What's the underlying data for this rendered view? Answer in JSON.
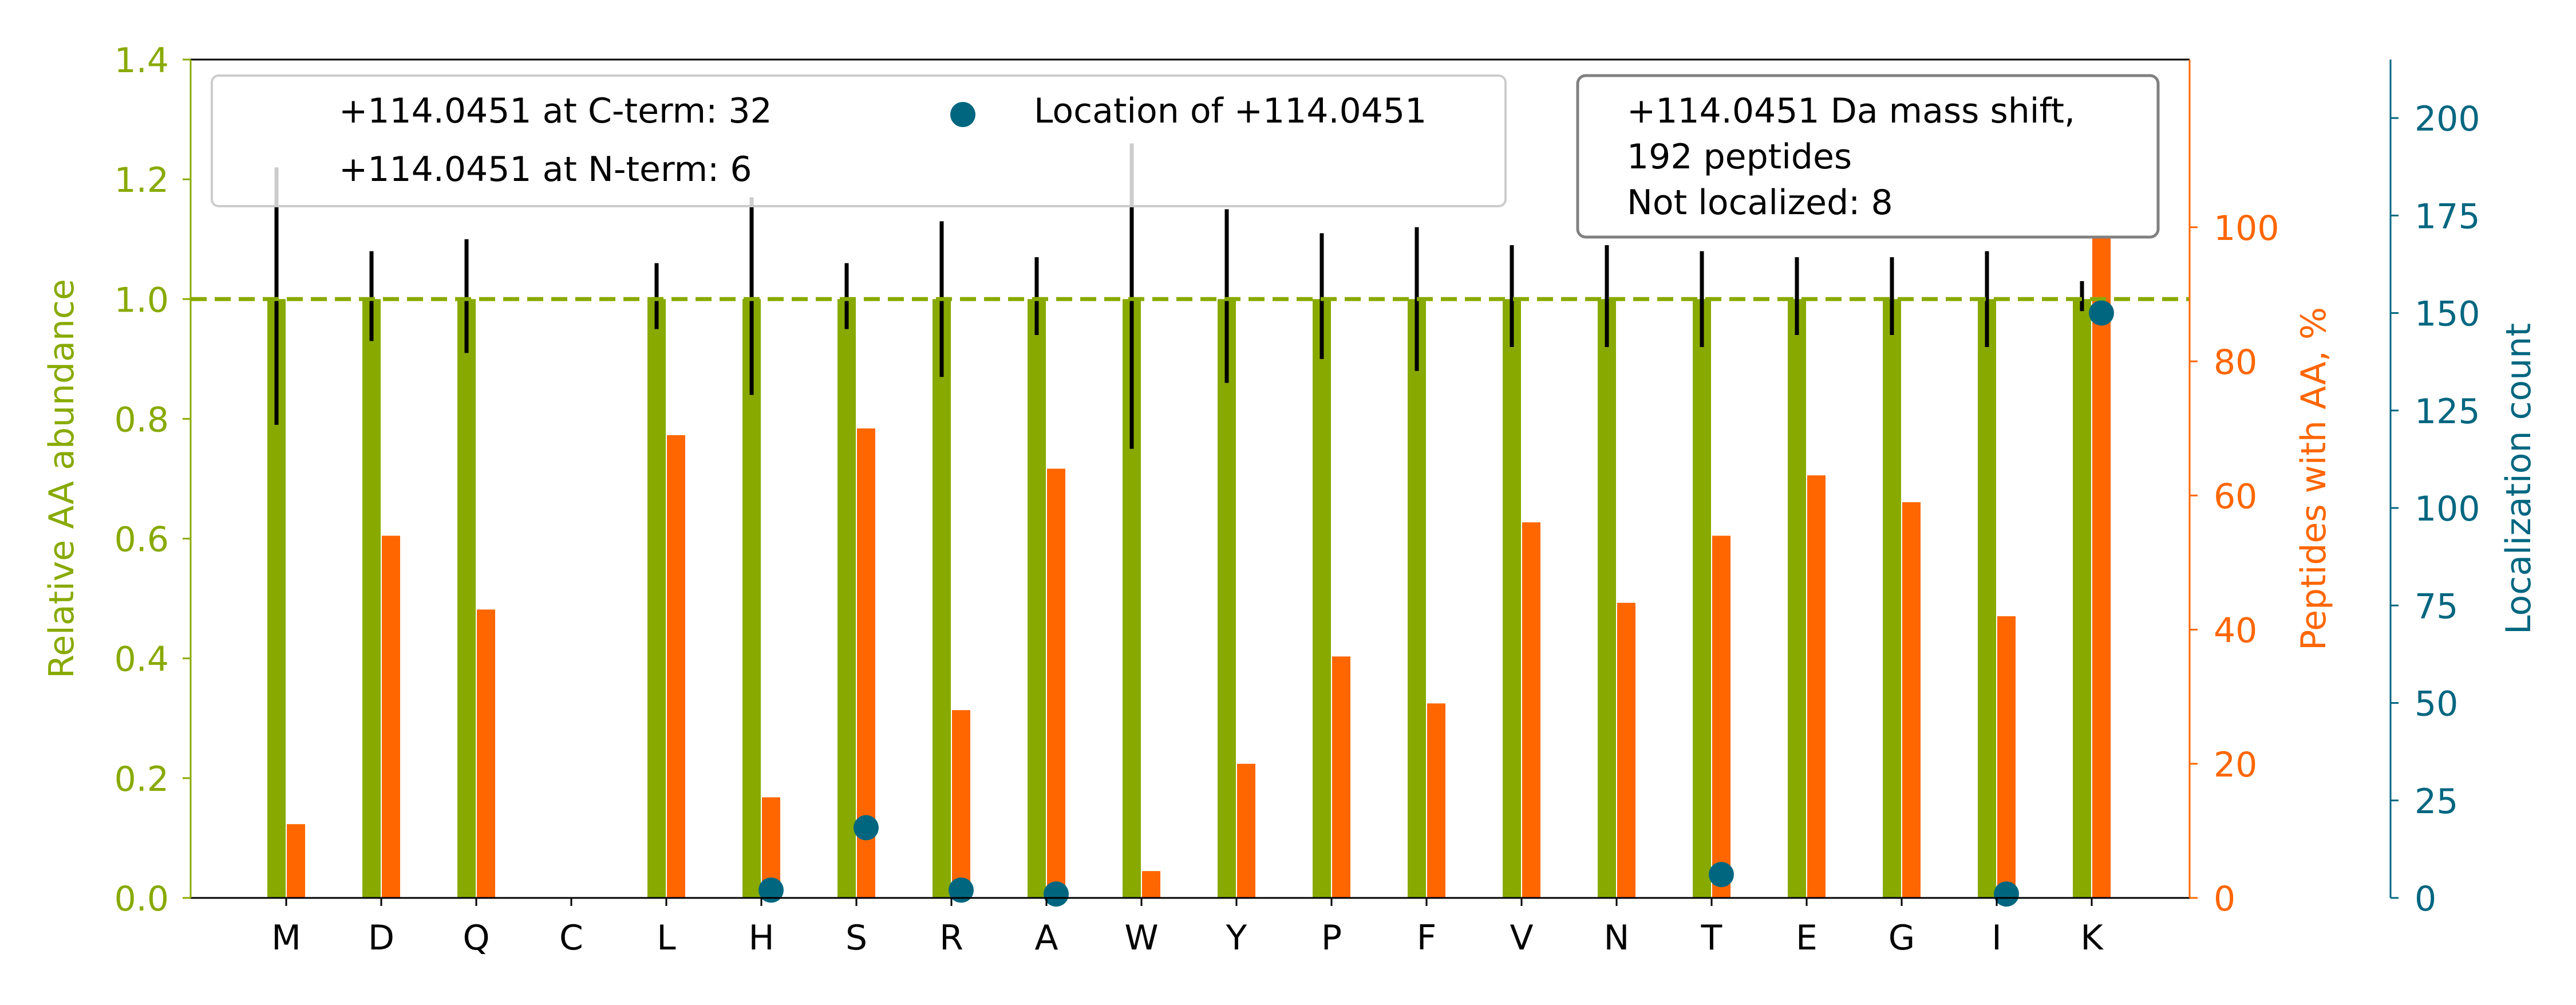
{
  "colors": {
    "abundance": "#88aa00",
    "peptides": "#ff6600",
    "localization": "#006680",
    "errorbar": "#000000",
    "axis": "#000000",
    "legend_border": "#cccccc",
    "infobox_border": "#808080"
  },
  "legend": {
    "cterm": "+114.0451 at C-term: 32",
    "nterm": "+114.0451 at N-term: 6",
    "location": "Location of +114.0451",
    "location_marker": "circle"
  },
  "info_box": {
    "line1": "+114.0451 Da mass shift,",
    "line2": "192 peptides",
    "line3": "Not localized: 8"
  },
  "chart_data": {
    "type": "bar",
    "categories": [
      "M",
      "D",
      "Q",
      "C",
      "L",
      "H",
      "S",
      "R",
      "A",
      "W",
      "Y",
      "P",
      "F",
      "V",
      "N",
      "T",
      "E",
      "G",
      "I",
      "K"
    ],
    "series": [
      {
        "axis": "left",
        "values": [
          1.0,
          1.0,
          1.0,
          null,
          1.0,
          1.0,
          1.0,
          1.0,
          1.0,
          1.0,
          1.0,
          1.0,
          1.0,
          1.0,
          1.0,
          1.0,
          1.0,
          1.0,
          1.0,
          1.0
        ],
        "error_low": [
          0.79,
          0.93,
          0.91,
          null,
          0.95,
          0.84,
          0.95,
          0.87,
          0.94,
          0.75,
          0.86,
          0.9,
          0.88,
          0.92,
          0.92,
          0.92,
          0.94,
          0.94,
          0.92,
          0.98
        ],
        "error_high": [
          1.22,
          1.08,
          1.1,
          null,
          1.06,
          1.17,
          1.06,
          1.13,
          1.07,
          1.26,
          1.15,
          1.11,
          1.12,
          1.09,
          1.09,
          1.08,
          1.07,
          1.07,
          1.08,
          1.03
        ]
      },
      {
        "axis": "right",
        "values": [
          11,
          54,
          43,
          0,
          69,
          15,
          70,
          28,
          64,
          4,
          20,
          36,
          29,
          56,
          44,
          54,
          63,
          59,
          42,
          100
        ]
      },
      {
        "axis": "far_right",
        "type": "scatter",
        "points": [
          {
            "category": "H",
            "value": 2
          },
          {
            "category": "S",
            "value": 18
          },
          {
            "category": "R",
            "value": 2
          },
          {
            "category": "A",
            "value": 1
          },
          {
            "category": "T",
            "value": 6
          },
          {
            "category": "I",
            "value": 1
          },
          {
            "category": "K",
            "value": 150
          }
        ]
      }
    ],
    "reference_line": {
      "value": 1.0,
      "style": "dashed"
    },
    "left_axis": {
      "label": "Relative AA abundance",
      "range": [
        0,
        1.4
      ],
      "ticks": [
        "0.0",
        "0.2",
        "0.4",
        "0.6",
        "0.8",
        "1.0",
        "1.2",
        "1.4"
      ]
    },
    "right_axis": {
      "label": "Peptides with AA, %",
      "range": [
        0,
        125
      ],
      "ticks": [
        "0",
        "20",
        "40",
        "60",
        "80",
        "100"
      ]
    },
    "far_right_axis": {
      "label": "Localization count",
      "range": [
        0,
        215
      ],
      "ticks": [
        "0",
        "25",
        "50",
        "75",
        "100",
        "125",
        "150",
        "175",
        "200"
      ]
    }
  }
}
